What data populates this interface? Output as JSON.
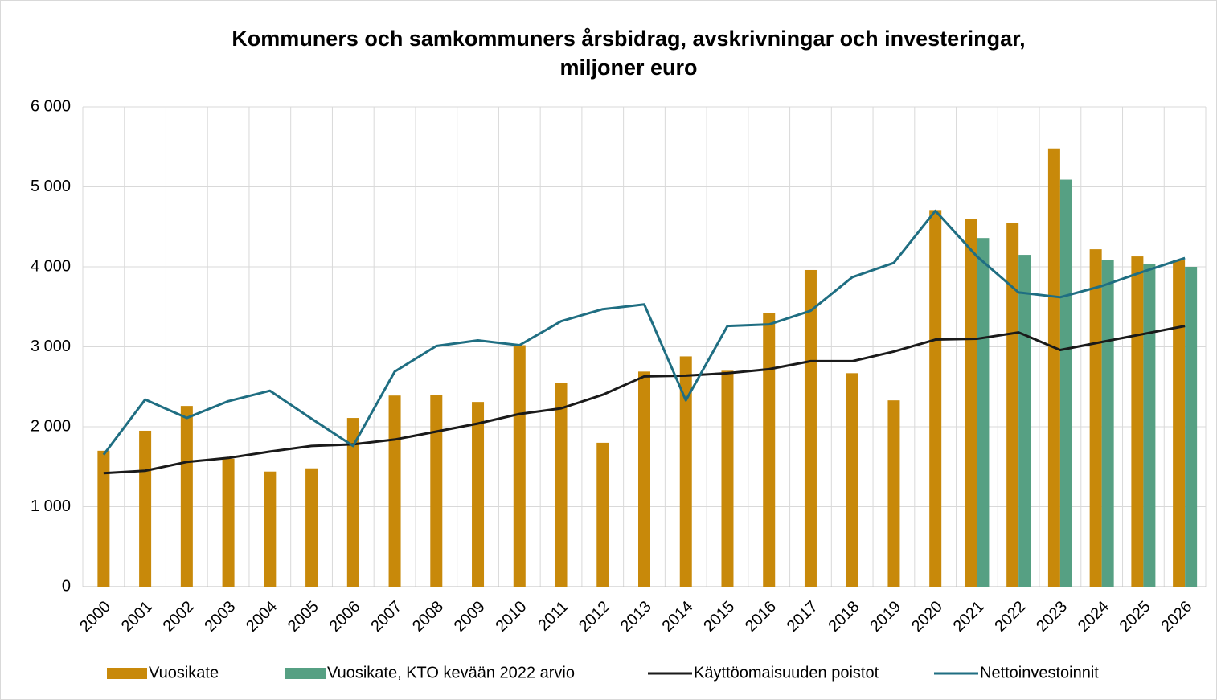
{
  "chart_data": {
    "type": "bar_line",
    "title": [
      "Kommuners och samkommuners årsbidrag, avskrivningar och investeringar,",
      "miljoner euro"
    ],
    "categories": [
      "2000",
      "2001",
      "2002",
      "2003",
      "2004",
      "2005",
      "2006",
      "2007",
      "2008",
      "2009",
      "2010",
      "2011",
      "2012",
      "2013",
      "2014",
      "2015",
      "2016",
      "2017",
      "2018",
      "2019",
      "2020",
      "2021",
      "2022",
      "2023",
      "2024",
      "2025",
      "2026"
    ],
    "series": [
      {
        "name": "Vuosikate",
        "color": "#c8890a",
        "kind": "bar",
        "values": [
          1700,
          1950,
          2260,
          1600,
          1440,
          1480,
          2110,
          2390,
          2400,
          2310,
          3020,
          2550,
          1800,
          2690,
          2880,
          2700,
          3420,
          3960,
          2670,
          2330,
          4710,
          4600,
          4550,
          5480,
          4220,
          4130,
          4080
        ]
      },
      {
        "name": "Vuosikate, KTO kevään 2022 arvio",
        "color": "#56a083",
        "kind": "bar",
        "values": [
          null,
          null,
          null,
          null,
          null,
          null,
          null,
          null,
          null,
          null,
          null,
          null,
          null,
          null,
          null,
          null,
          null,
          null,
          null,
          null,
          null,
          4360,
          4150,
          5090,
          4090,
          4040,
          4000
        ]
      },
      {
        "name": "Käyttöomaisuuden poistot",
        "color": "#1a1a1a",
        "kind": "line",
        "values": [
          1420,
          1450,
          1560,
          1610,
          1690,
          1760,
          1780,
          1840,
          1940,
          2040,
          2160,
          2230,
          2400,
          2630,
          2640,
          2670,
          2720,
          2820,
          2820,
          2940,
          3090,
          3100,
          3180,
          2960,
          3060,
          3160,
          3260
        ]
      },
      {
        "name": "Nettoinvestoinnit",
        "color": "#1f6e82",
        "kind": "line",
        "values": [
          1650,
          2340,
          2110,
          2320,
          2450,
          2100,
          1760,
          2690,
          3010,
          3080,
          3020,
          3320,
          3470,
          3530,
          2330,
          3260,
          3280,
          3450,
          3870,
          4050,
          4700,
          4130,
          3680,
          3620,
          3760,
          3940,
          4110
        ]
      }
    ],
    "ylim": [
      0,
      6000
    ],
    "yticks": [
      0,
      {
        "value": 1000,
        "label": "1 000"
      },
      {
        "value": 2000,
        "label": "2 000"
      },
      {
        "value": 3000,
        "label": "3 000"
      },
      {
        "value": 4000,
        "label": "4 000"
      },
      {
        "value": 5000,
        "label": "5 000"
      },
      {
        "value": 6000,
        "label": "6 000"
      }
    ],
    "grid": true,
    "legend": "bottom"
  }
}
